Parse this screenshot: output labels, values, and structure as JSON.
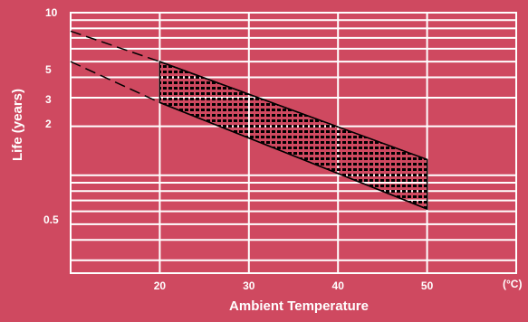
{
  "chart_data": {
    "type": "area",
    "xlabel": "Ambient Temperature",
    "ylabel": "Life (years)",
    "x_unit_label": "(°C)",
    "x_ticks": [
      20,
      30,
      40,
      50
    ],
    "y_tick_labels": [
      "10",
      "5",
      "3",
      "2",
      "0.5"
    ],
    "xlim": [
      10,
      60
    ],
    "ylim": [
      0.25,
      10
    ],
    "y_scale": "log",
    "grid": true,
    "series": [
      {
        "x": [
          20,
          50
        ],
        "values": [
          5.0,
          1.25
        ]
      },
      {
        "x": [
          20,
          50
        ],
        "values": [
          2.8,
          0.62
        ]
      }
    ],
    "extrapolation": [
      {
        "x": [
          10,
          20
        ],
        "values": [
          7.7,
          5.0
        ]
      },
      {
        "x": [
          10,
          20
        ],
        "values": [
          5.0,
          2.8
        ]
      }
    ],
    "colors": {
      "background": "#cf4960",
      "grid": "#ffffff",
      "lines": "#000000"
    }
  }
}
